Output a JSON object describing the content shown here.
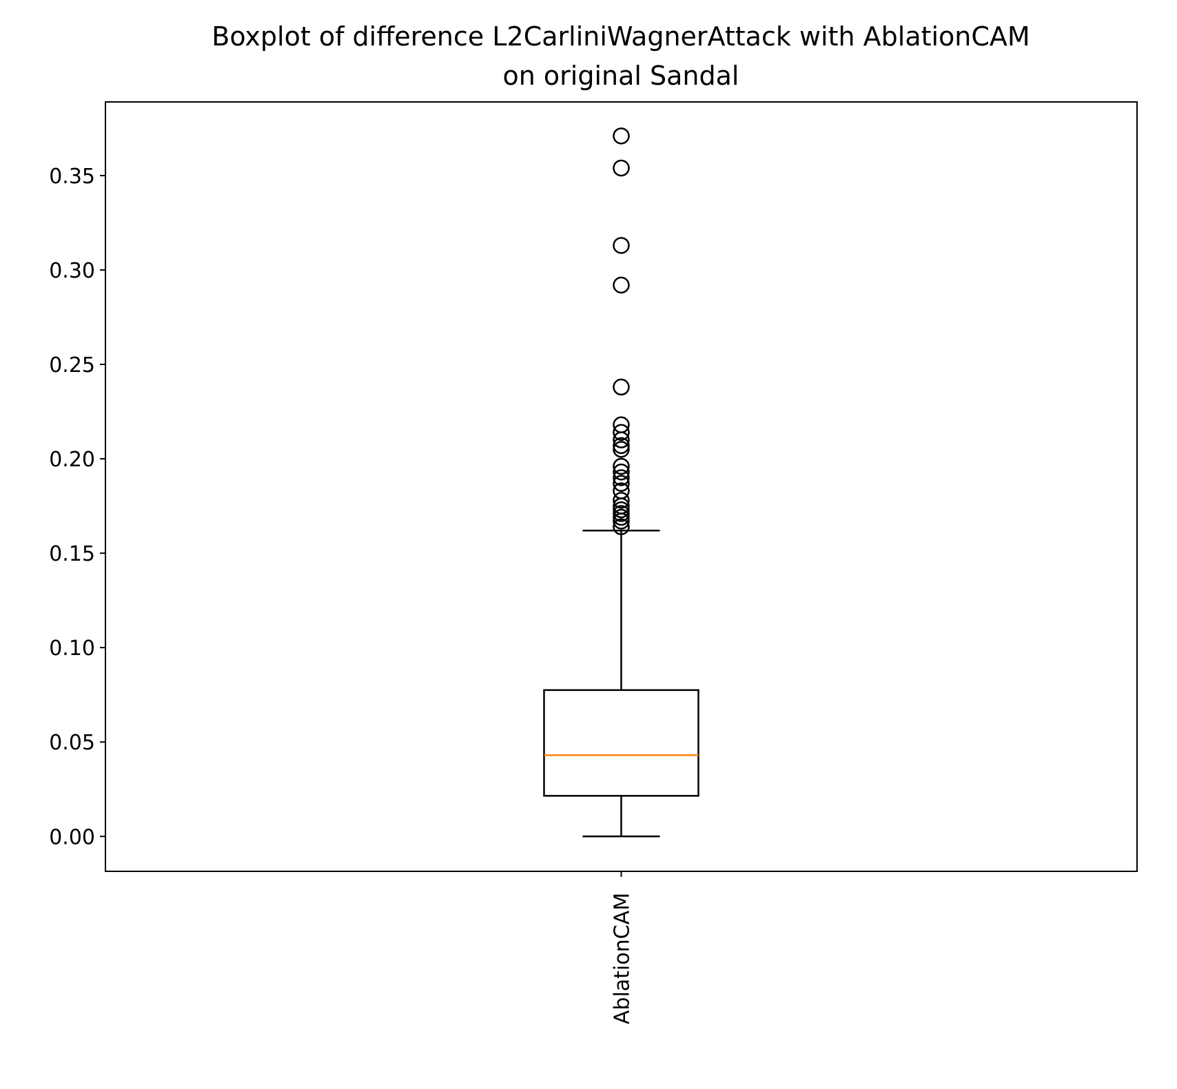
{
  "chart_data": {
    "type": "boxplot",
    "title_lines": [
      "Boxplot of difference L2CarliniWagnerAttack with AblationCAM",
      "on original Sandal"
    ],
    "xlabel": "",
    "ylabel": "",
    "categories": [
      "AblationCAM"
    ],
    "ylim": [
      -0.0185,
      0.389
    ],
    "yticks": [
      0.0,
      0.05,
      0.1,
      0.15,
      0.2,
      0.25,
      0.3,
      0.35
    ],
    "ytick_labels": [
      "0.00",
      "0.05",
      "0.10",
      "0.15",
      "0.20",
      "0.25",
      "0.30",
      "0.35"
    ],
    "grid": false,
    "boxes": [
      {
        "label": "AblationCAM",
        "whisker_low": 0.0,
        "q1": 0.0215,
        "median": 0.043,
        "q3": 0.0775,
        "whisker_high": 0.162,
        "outliers": [
          0.371,
          0.354,
          0.313,
          0.292,
          0.238,
          0.218,
          0.214,
          0.21,
          0.207,
          0.205,
          0.196,
          0.193,
          0.19,
          0.187,
          0.183,
          0.178,
          0.175,
          0.173,
          0.171,
          0.169,
          0.167,
          0.164
        ]
      }
    ],
    "colors": {
      "box": "#000000",
      "median": "#ff7f0e",
      "outlier": "#000000"
    }
  }
}
